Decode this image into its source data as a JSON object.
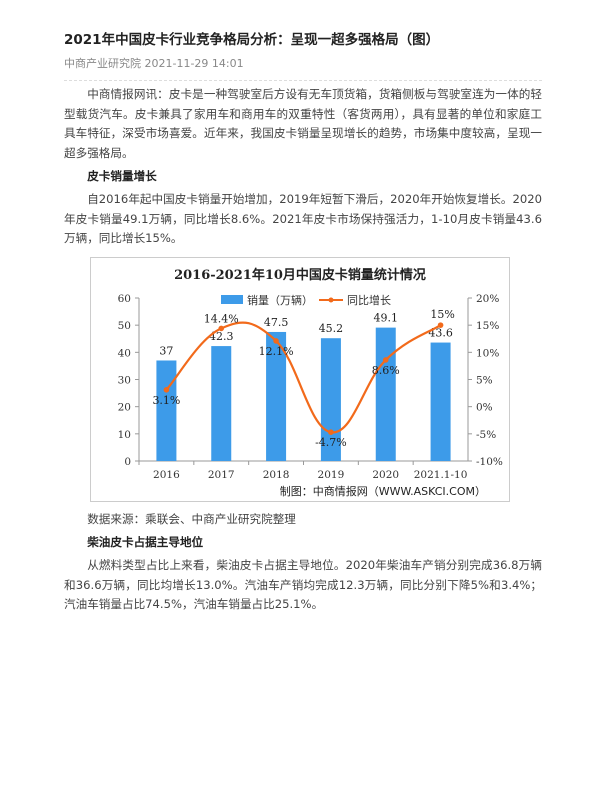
{
  "article": {
    "title": "2021年中国皮卡行业竞争格局分析：呈现一超多强格局（图）",
    "source": "中商产业研究院",
    "date": "2021-11-29 14:01",
    "para1": "中商情报网讯：皮卡是一种驾驶室后方设有无车顶货箱，货箱侧板与驾驶室连为一体的轻型载货汽车。皮卡兼具了家用车和商用车的双重特性（客货两用），具有显著的单位和家庭工具车特征，深受市场喜爱。近年来，我国皮卡销量呈现增长的趋势，市场集中度较高，呈现一超多强格局。",
    "heading1": "皮卡销量增长",
    "para2": "自2016年起中国皮卡销量开始增加，2019年短暂下滑后，2020年开始恢复增长。2020年皮卡销量49.1万辆，同比增长8.6%。2021年皮卡市场保持强活力，1-10月皮卡销量43.6万辆，同比增长15%。",
    "data_source": "数据来源：乘联会、中商产业研究院整理",
    "heading2": "柴油皮卡占据主导地位",
    "para3": "从燃料类型占比上来看，柴油皮卡占据主导地位。2020年柴油车产销分别完成36.8万辆和36.6万辆，同比均增长13.0%。汽油车产销均完成12.3万辆，同比分别下降5%和3.4%；汽油车销量占比74.5%，汽油车销量占比25.1%。"
  },
  "chart_data": {
    "type": "bar+line",
    "title": "2016-2021年10月中国皮卡销量统计情况",
    "categories": [
      "2016",
      "2017",
      "2018",
      "2019",
      "2020",
      "2021.1-10"
    ],
    "series": [
      {
        "name": "销量（万辆）",
        "type": "bar",
        "axis": "left",
        "values": [
          37,
          42.3,
          47.5,
          45.2,
          49.1,
          43.6
        ],
        "labels": [
          "37",
          "42.3",
          "47.5",
          "45.2",
          "49.1",
          "43.6"
        ],
        "color": "#3d9be9"
      },
      {
        "name": "同比增长",
        "type": "line",
        "axis": "right",
        "values": [
          3.1,
          14.4,
          12.1,
          -4.7,
          8.6,
          15
        ],
        "labels": [
          "3.1%",
          "14.4%",
          "12.1%",
          "-4.7%",
          "8.6%",
          "15%"
        ],
        "color": "#f26a1b"
      }
    ],
    "left_axis": {
      "ylim": [
        0,
        60
      ],
      "ticks": [
        "0",
        "10",
        "20",
        "30",
        "40",
        "50",
        "60"
      ]
    },
    "right_axis": {
      "ylim": [
        -10,
        20
      ],
      "ticks": [
        "-10%",
        "-5%",
        "0%",
        "5%",
        "10%",
        "15%",
        "20%"
      ]
    },
    "legend": "top",
    "grid": false,
    "credit": "制图：中商情报网（WWW.ASKCI.COM）"
  }
}
